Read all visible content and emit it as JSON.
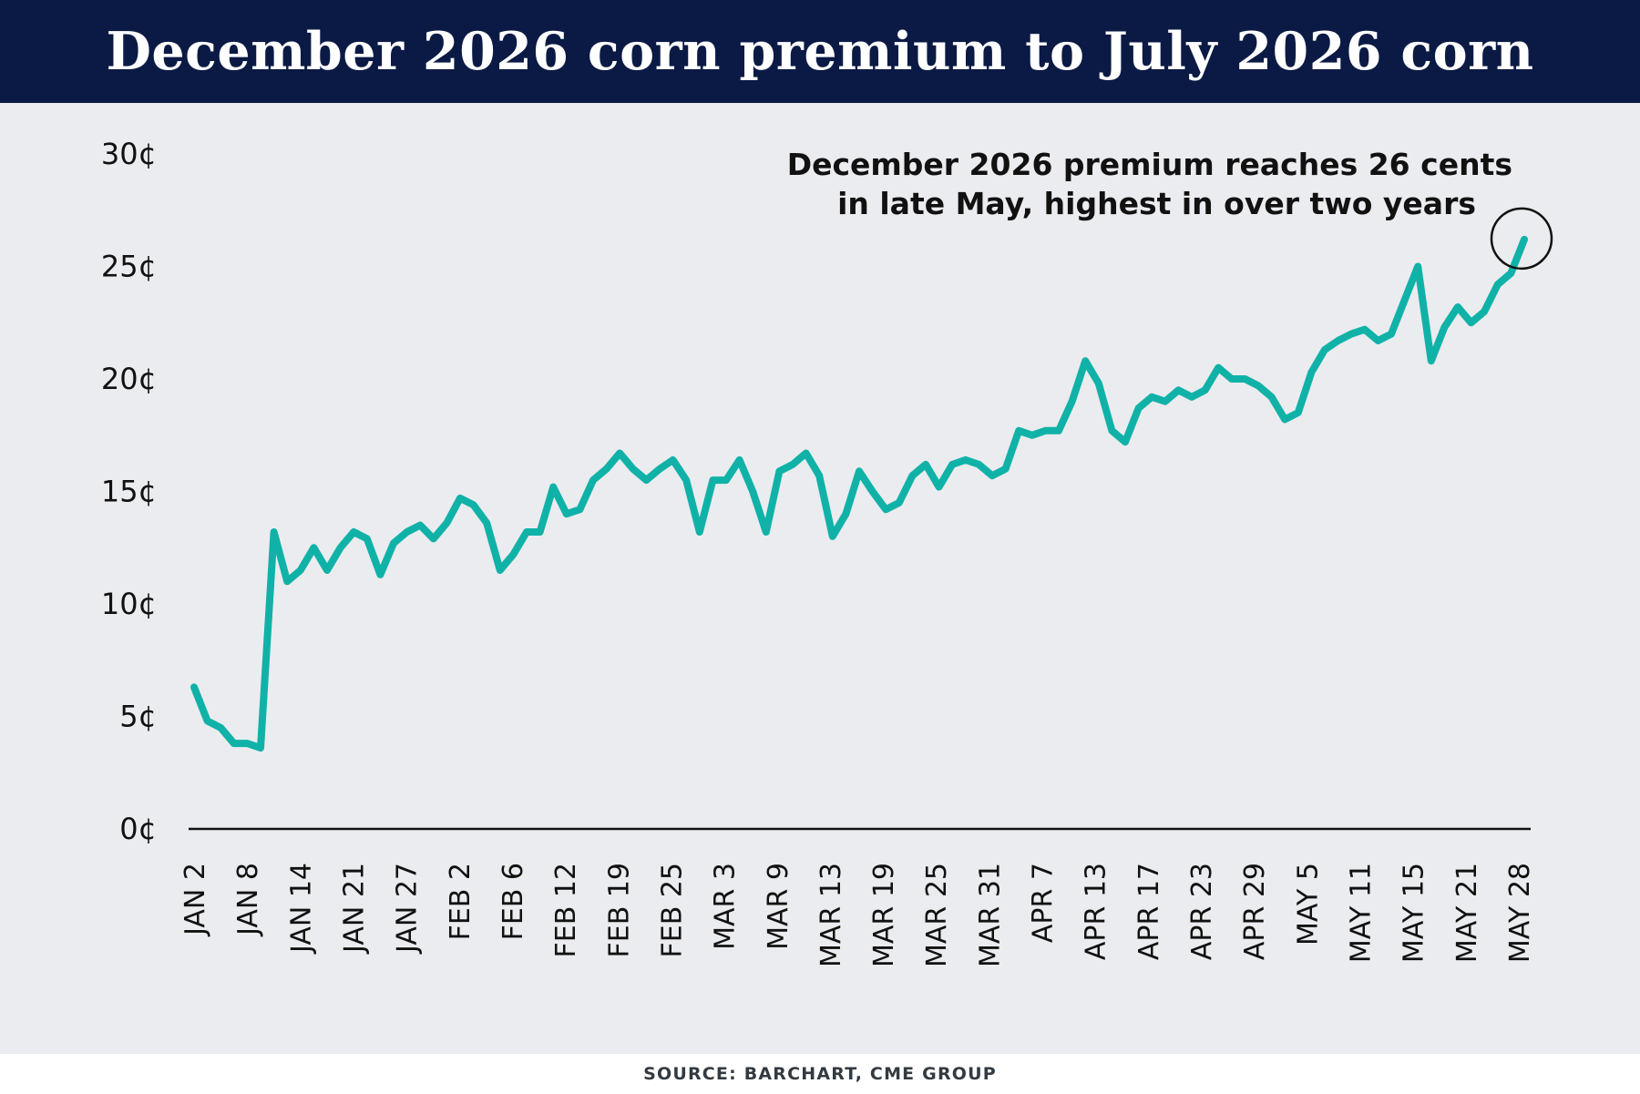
{
  "title": "December 2026 corn premium to July 2026 corn",
  "source": "SOURCE: BARCHART, CME GROUP",
  "colors": {
    "header_bg": "#0b1a45",
    "panel_bg": "#ebecef",
    "line": "#10b2a8",
    "text": "#111111"
  },
  "chart_data": {
    "type": "line",
    "title": "December 2026 corn premium to July 2026 corn",
    "xlabel": "",
    "ylabel": "",
    "ylim": [
      0,
      30
    ],
    "yticks": [
      0,
      5,
      10,
      15,
      20,
      25,
      30
    ],
    "ytick_labels": [
      "0¢",
      "5¢",
      "10¢",
      "15¢",
      "20¢",
      "25¢",
      "30¢"
    ],
    "xtick_labels": [
      "JAN 2",
      "JAN 8",
      "JAN 14",
      "JAN 21",
      "JAN 27",
      "FEB 2",
      "FEB 6",
      "FEB 12",
      "FEB 19",
      "FEB 25",
      "MAR 3",
      "MAR 9",
      "MAR 13",
      "MAR 19",
      "MAR 25",
      "MAR 31",
      "APR 7",
      "APR 13",
      "APR 17",
      "APR 23",
      "APR 29",
      "MAY 5",
      "MAY 11",
      "MAY 15",
      "MAY 21",
      "MAY 28"
    ],
    "grid": false,
    "legend": "none",
    "series": [
      {
        "name": "",
        "values": [
          6.3,
          4.8,
          4.5,
          3.8,
          3.8,
          3.6,
          13.2,
          11.0,
          11.5,
          12.5,
          11.5,
          12.5,
          13.2,
          12.9,
          11.3,
          12.7,
          13.2,
          13.5,
          12.9,
          13.6,
          14.7,
          14.4,
          13.6,
          11.5,
          12.2,
          13.2,
          13.2,
          15.2,
          14.0,
          14.2,
          15.5,
          16.0,
          16.7,
          16.0,
          15.5,
          16.0,
          16.4,
          15.5,
          13.2,
          15.5,
          15.5,
          16.4,
          15.0,
          13.2,
          15.9,
          16.2,
          16.7,
          15.7,
          13.0,
          14.0,
          15.9,
          15.0,
          14.2,
          14.5,
          15.7,
          16.2,
          15.2,
          16.2,
          16.4,
          16.2,
          15.7,
          16.0,
          17.7,
          17.5,
          17.7,
          17.7,
          19.0,
          20.8,
          19.8,
          17.7,
          17.2,
          18.7,
          19.2,
          19.0,
          19.5,
          19.2,
          19.5,
          20.5,
          20.0,
          20.0,
          19.7,
          19.2,
          18.2,
          18.5,
          20.3,
          21.3,
          21.7,
          22.0,
          22.2,
          21.7,
          22.0,
          23.5,
          25.0,
          20.8,
          22.3,
          23.2,
          22.5,
          23.0,
          24.2,
          24.7,
          26.2
        ]
      }
    ],
    "annotation": {
      "lines": [
        "December 2026 premium reaches 26 cents",
        "in late May, highest in over two years"
      ],
      "marker": "circle around final point"
    }
  }
}
